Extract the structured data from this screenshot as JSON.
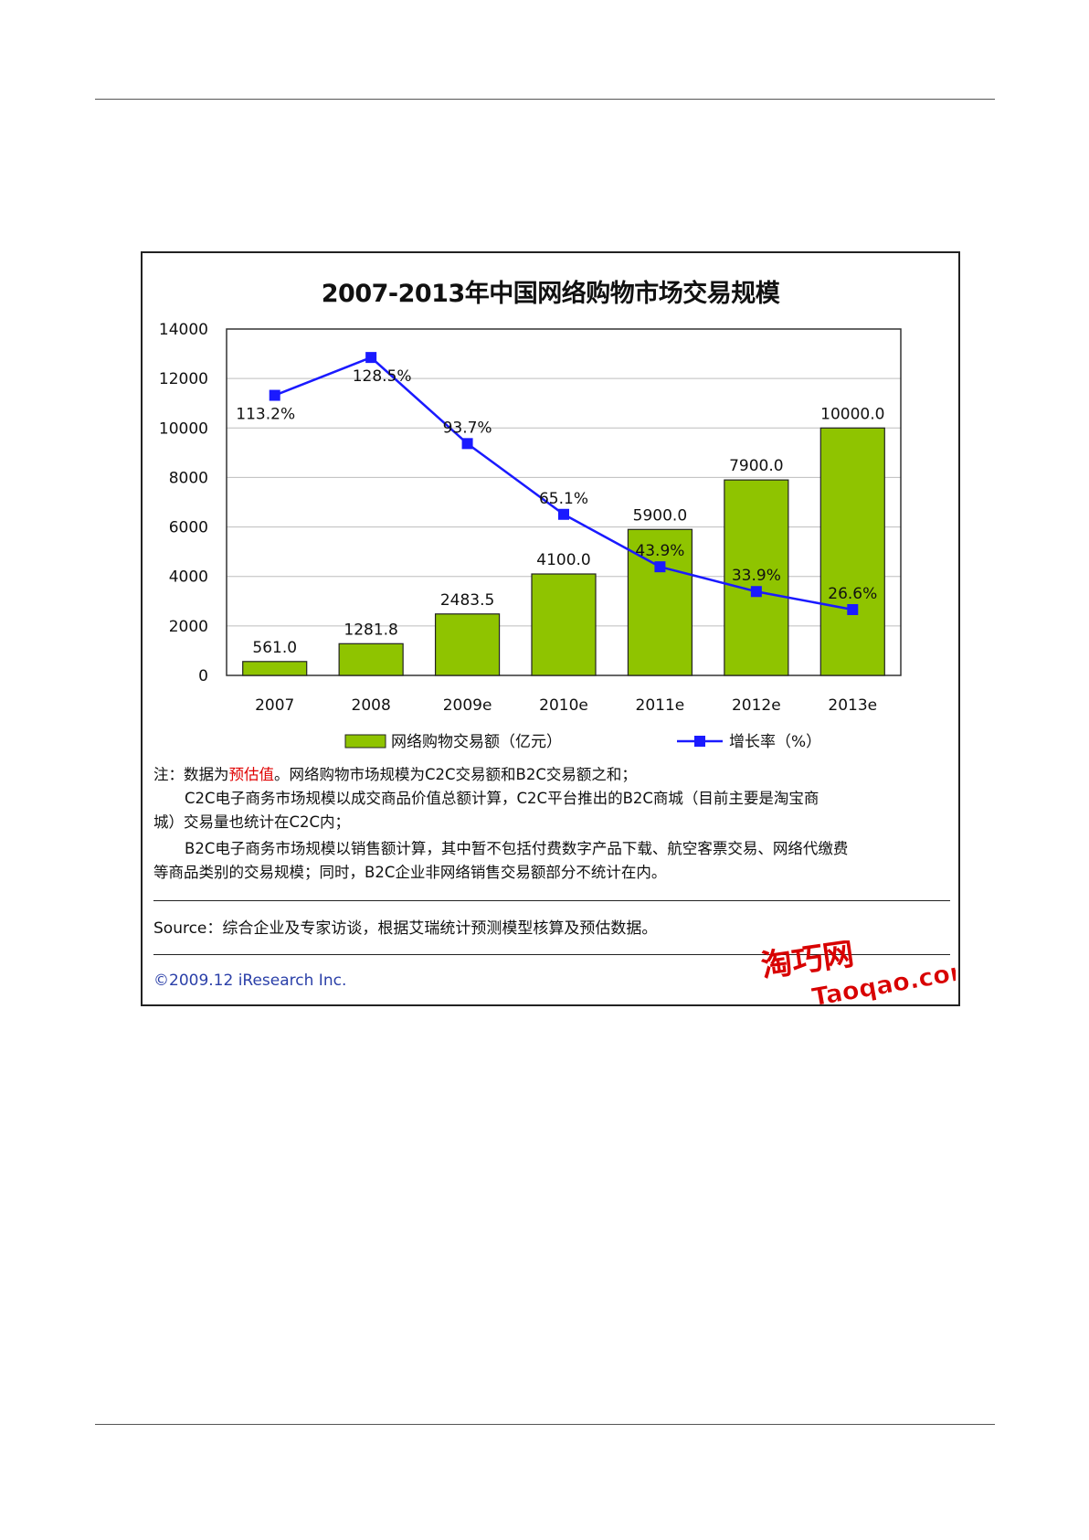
{
  "chart_data": {
    "type": "bar",
    "title": "2007-2013年中国网络购物市场交易规模",
    "categories": [
      "2007",
      "2008",
      "2009e",
      "2010e",
      "2011e",
      "2012e",
      "2013e"
    ],
    "ylim": [
      0,
      14000
    ],
    "yticks": [
      "0",
      "2000",
      "4000",
      "6000",
      "8000",
      "10000",
      "12000",
      "14000"
    ],
    "grid": true,
    "legend_position": "bottom",
    "series": [
      {
        "name": "网络购物交易额（亿元）",
        "type": "bar",
        "color": "#8fc400",
        "values": [
          561.0,
          1281.8,
          2483.5,
          4100.0,
          5900.0,
          7900.0,
          10000.0
        ],
        "labels": [
          "561.0",
          "1281.8",
          "2483.5",
          "4100.0",
          "5900.0",
          "7900.0",
          "10000.0"
        ]
      },
      {
        "name": "增长率（%）",
        "type": "line",
        "color": "#1a1aff",
        "values": [
          113.2,
          128.5,
          93.7,
          65.1,
          43.9,
          33.9,
          26.6
        ],
        "labels": [
          "113.2%",
          "128.5%",
          "93.7%",
          "65.1%",
          "43.9%",
          "33.9%",
          "26.6%"
        ],
        "secondary_axis_shown": false
      }
    ]
  },
  "notes": {
    "line1_prefix": "注：数据为",
    "line1_highlight": "预估值",
    "line1_suffix": "。网络购物市场规模为C2C交易额和B2C交易额之和；",
    "line2": "C2C电子商务市场规模以成交商品价值总额计算，C2C平台推出的B2C商城（目前主要是淘宝商",
    "line3": "城）交易量也统计在C2C内；",
    "line4": "B2C电子商务市场规模以销售额计算，其中暂不包括付费数字产品下载、航空客票交易、网络代缴费",
    "line5": "等商品类别的交易规模；同时，B2C企业非网络销售交易额部分不统计在内。"
  },
  "source": "Source：综合企业及专家访谈，根据艾瑞统计预测模型核算及预估数据。",
  "copyright": "©2009.12 iResearch Inc.",
  "watermark": {
    "logo_text": "淘巧网",
    "site_text": "Taoqao.com",
    "colors": {
      "logo": "#d80000",
      "accent": "#1a3fb5"
    }
  }
}
